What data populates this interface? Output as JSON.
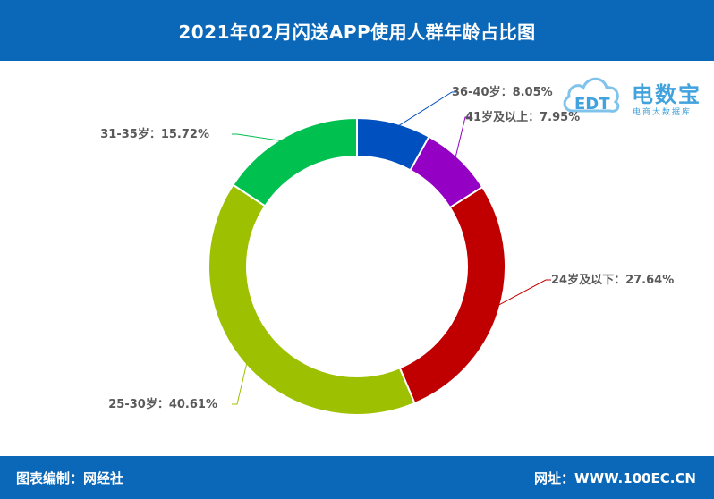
{
  "header": {
    "title": "2021年02月闪送APP使用人群年龄占比图"
  },
  "footer": {
    "source": "图表编制：网经社",
    "website": "网址：WWW.100EC.CN"
  },
  "logo": {
    "name": "电数宝",
    "subtitle": "电商大数据库",
    "mark": "EDT"
  },
  "colors": {
    "header_bg": "#0b68b8",
    "leader": "#7f7f7f"
  },
  "chart_data": {
    "type": "pie",
    "donut": true,
    "title": "2021年02月闪送APP使用人群年龄占比图",
    "series": [
      {
        "label": "36-40岁：8.05%",
        "category": "36-40岁",
        "value": 8.05,
        "color": "#0050c0"
      },
      {
        "label": "41岁及以上：7.95%",
        "category": "41岁及以上",
        "value": 7.95,
        "color": "#9400c4"
      },
      {
        "label": "24岁及以下：27.64%",
        "category": "24岁及以下",
        "value": 27.64,
        "color": "#c00000"
      },
      {
        "label": "25-30岁：40.61%",
        "category": "25-30岁",
        "value": 40.61,
        "color": "#9dc100"
      },
      {
        "label": "31-35岁：15.72%",
        "category": "31-35岁",
        "value": 15.72,
        "color": "#00c050"
      }
    ]
  }
}
